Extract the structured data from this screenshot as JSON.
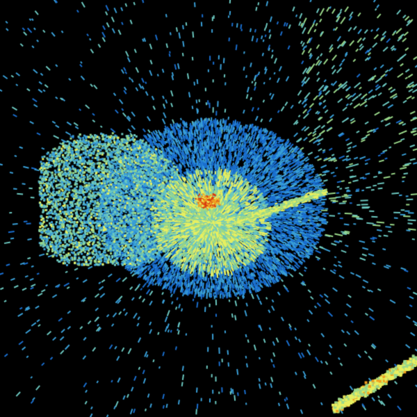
{
  "image": {
    "background": "#000000",
    "palette": {
      "weak": "#1a6fd0",
      "light": "#3aa0d8",
      "cyan": "#6cc8c0",
      "green": "#9ad88a",
      "yellow": "#e8f060",
      "orange": "#f0a020",
      "red": "#d83a10"
    }
  }
}
